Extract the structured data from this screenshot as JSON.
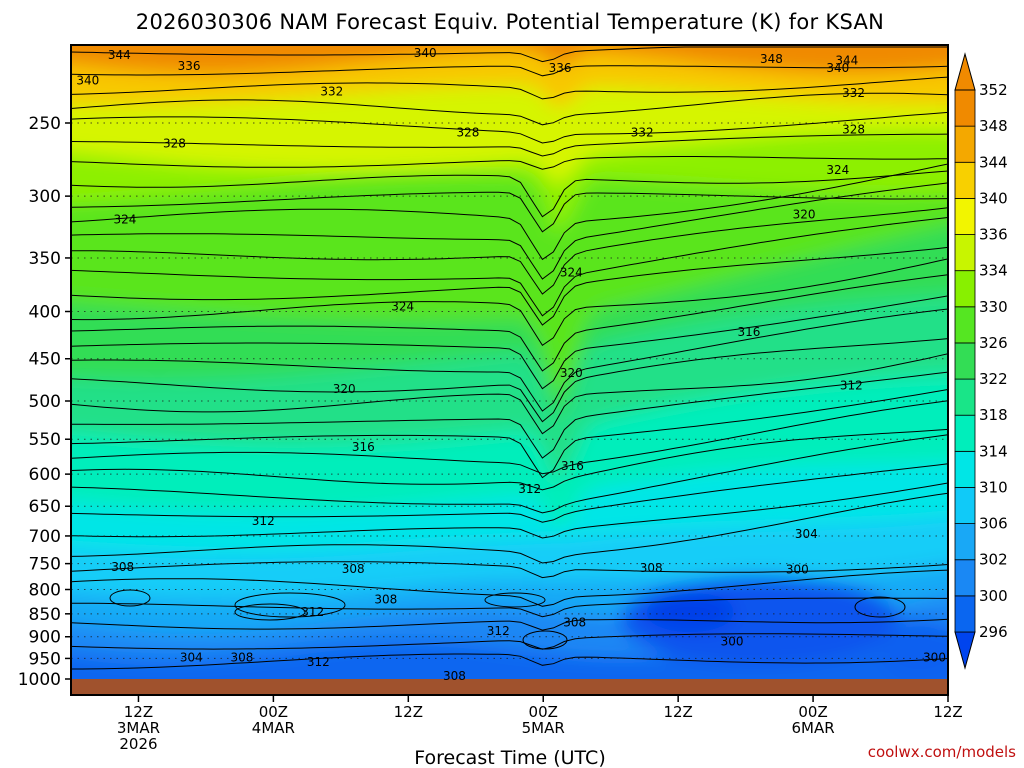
{
  "chart_data": {
    "type": "heatmap",
    "title": "2026030306 NAM Forecast Equiv. Potential Temperature (K) for KSAN",
    "xlabel": "Forecast Time (UTC)",
    "ylabel": "",
    "credit": "coolwx.com/models",
    "y_axis": {
      "scale": "log-pressure",
      "range": [
        1000,
        200
      ],
      "ticks": [
        250,
        300,
        350,
        400,
        450,
        500,
        550,
        600,
        650,
        700,
        750,
        800,
        850,
        900,
        950,
        1000
      ],
      "grid": "dotted"
    },
    "x_axis": {
      "range_hours": [
        6,
        84
      ],
      "ticks": [
        {
          "hour": 12,
          "label": "12Z",
          "sub1": "3MAR",
          "sub2": "2026"
        },
        {
          "hour": 24,
          "label": "00Z",
          "sub1": "4MAR",
          "sub2": ""
        },
        {
          "hour": 36,
          "label": "12Z",
          "sub1": "",
          "sub2": ""
        },
        {
          "hour": 48,
          "label": "00Z",
          "sub1": "5MAR",
          "sub2": ""
        },
        {
          "hour": 60,
          "label": "12Z",
          "sub1": "",
          "sub2": ""
        },
        {
          "hour": 72,
          "label": "00Z",
          "sub1": "6MAR",
          "sub2": ""
        },
        {
          "hour": 84,
          "label": "12Z",
          "sub1": "",
          "sub2": ""
        }
      ]
    },
    "colorbar": {
      "levels": [
        296,
        300,
        302,
        306,
        310,
        314,
        318,
        322,
        326,
        330,
        334,
        336,
        340,
        344,
        348,
        352
      ],
      "colors": [
        "#0044ee",
        "#0a66f0",
        "#1a88f4",
        "#19a8f6",
        "#10caf8",
        "#00e6e6",
        "#00eebb",
        "#19e588",
        "#33dd55",
        "#55e622",
        "#88f000",
        "#c8f500",
        "#f2f500",
        "#f8d000",
        "#f4a800",
        "#f08a00"
      ]
    },
    "contour_labels": [
      {
        "value": "344",
        "hour": 10.3,
        "p": 211
      },
      {
        "value": "340",
        "hour": 37.5,
        "p": 210
      },
      {
        "value": "348",
        "hour": 68.3,
        "p": 213
      },
      {
        "value": "344",
        "hour": 75.0,
        "p": 214
      },
      {
        "value": "340",
        "hour": 7.5,
        "p": 225
      },
      {
        "value": "336",
        "hour": 16.5,
        "p": 217
      },
      {
        "value": "336",
        "hour": 49.5,
        "p": 218
      },
      {
        "value": "340",
        "hour": 74.2,
        "p": 218
      },
      {
        "value": "332",
        "hour": 29.2,
        "p": 231
      },
      {
        "value": "332",
        "hour": 75.6,
        "p": 232
      },
      {
        "value": "328",
        "hour": 41.3,
        "p": 256
      },
      {
        "value": "332",
        "hour": 56.8,
        "p": 256
      },
      {
        "value": "328",
        "hour": 75.6,
        "p": 254
      },
      {
        "value": "328",
        "hour": 15.2,
        "p": 263
      },
      {
        "value": "324",
        "hour": 74.2,
        "p": 281
      },
      {
        "value": "324",
        "hour": 10.8,
        "p": 318
      },
      {
        "value": "320",
        "hour": 71.2,
        "p": 314
      },
      {
        "value": "324",
        "hour": 50.5,
        "p": 363
      },
      {
        "value": "324",
        "hour": 35.5,
        "p": 395
      },
      {
        "value": "316",
        "hour": 66.3,
        "p": 421
      },
      {
        "value": "320",
        "hour": 50.5,
        "p": 466
      },
      {
        "value": "312",
        "hour": 75.4,
        "p": 481
      },
      {
        "value": "320",
        "hour": 30.3,
        "p": 485
      },
      {
        "value": "316",
        "hour": 32.0,
        "p": 561
      },
      {
        "value": "316",
        "hour": 50.6,
        "p": 588
      },
      {
        "value": "312",
        "hour": 46.8,
        "p": 623
      },
      {
        "value": "312",
        "hour": 23.1,
        "p": 674
      },
      {
        "value": "304",
        "hour": 71.4,
        "p": 697
      },
      {
        "value": "308",
        "hour": 10.6,
        "p": 756
      },
      {
        "value": "308",
        "hour": 31.1,
        "p": 760
      },
      {
        "value": "308",
        "hour": 57.6,
        "p": 758
      },
      {
        "value": "300",
        "hour": 70.6,
        "p": 761
      },
      {
        "value": "308",
        "hour": 34.0,
        "p": 820
      },
      {
        "value": "312",
        "hour": 27.5,
        "p": 846
      },
      {
        "value": "308",
        "hour": 50.8,
        "p": 869
      },
      {
        "value": "312",
        "hour": 44.0,
        "p": 887
      },
      {
        "value": "300",
        "hour": 64.8,
        "p": 911
      },
      {
        "value": "304",
        "hour": 16.7,
        "p": 948
      },
      {
        "value": "308",
        "hour": 21.2,
        "p": 948
      },
      {
        "value": "312",
        "hour": 28.0,
        "p": 958
      },
      {
        "value": "300",
        "hour": 82.8,
        "p": 948
      },
      {
        "value": "308",
        "hour": 40.1,
        "p": 992
      }
    ]
  }
}
